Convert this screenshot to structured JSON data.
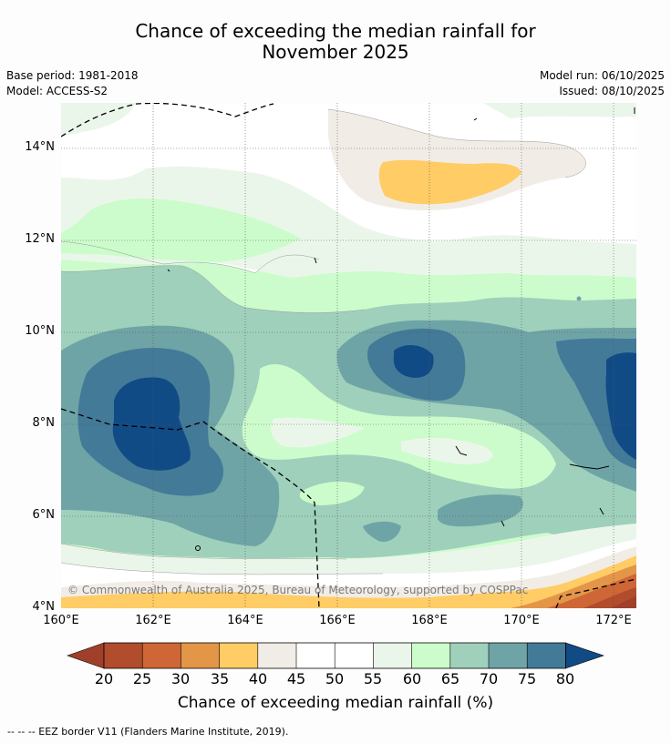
{
  "title": {
    "line1": "Chance of exceeding the median rainfall for",
    "line2": "November 2025"
  },
  "info": {
    "base_period": "Base period: 1981-2018",
    "model": "Model: ACCESS-S2",
    "model_run": "Model run: 06/10/2025",
    "issued": "Issued: 08/10/2025"
  },
  "map": {
    "copyright": "© Commonwealth of Australia 2025, Bureau of Meteorology, supported by COSPPac",
    "y_ticks": [
      "14°N",
      "12°N",
      "10°N",
      "8°N",
      "6°N",
      "4°N"
    ],
    "x_ticks": [
      "160°E",
      "162°E",
      "164°E",
      "166°E",
      "168°E",
      "170°E",
      "172°E"
    ]
  },
  "colorbar": {
    "title": "Chance of exceeding median rainfall (%)",
    "labels": [
      "20",
      "25",
      "30",
      "35",
      "40",
      "45",
      "50",
      "55",
      "60",
      "65",
      "70",
      "75",
      "80"
    ],
    "colors": {
      "below_20": "#a0402a",
      "c20_25": "#b14c2c",
      "c25_30": "#cf6636",
      "c30_35": "#e39548",
      "c35_40": "#ffcc66",
      "c40_45": "#f1ede6",
      "c45_50": "#ffffff",
      "c50_55": "#ffffff",
      "c55_60": "#ebf6ea",
      "c60_65": "#ccfccc",
      "c65_70": "#9fd0bb",
      "c70_75": "#6fa4a6",
      "c75_80": "#437a98",
      "above_80": "#114b86"
    }
  },
  "footer": "--  --  -- EEZ border V11 (Flanders Marine Institute, 2019)."
}
